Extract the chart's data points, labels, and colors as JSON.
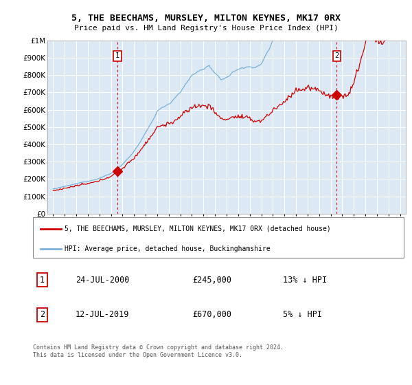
{
  "title_line1": "5, THE BEECHAMS, MURSLEY, MILTON KEYNES, MK17 0RX",
  "title_line2": "Price paid vs. HM Land Registry's House Price Index (HPI)",
  "legend_red": "5, THE BEECHAMS, MURSLEY, MILTON KEYNES, MK17 0RX (detached house)",
  "legend_blue": "HPI: Average price, detached house, Buckinghamshire",
  "sale1_date": "24-JUL-2000",
  "sale1_price": 245000,
  "sale1_label": "13% ↓ HPI",
  "sale2_date": "12-JUL-2019",
  "sale2_price": 670000,
  "sale2_label": "5% ↓ HPI",
  "footer": "Contains HM Land Registry data © Crown copyright and database right 2024.\nThis data is licensed under the Open Government Licence v3.0.",
  "bg_color": "#dce9f5",
  "grid_color": "#ffffff",
  "red_color": "#cc0000",
  "blue_color": "#7ab0d8",
  "sale1_x": 2000.55,
  "sale2_x": 2019.53,
  "ylim": [
    0,
    1000000
  ],
  "xlim_start": 1994.5,
  "xlim_end": 2025.5
}
